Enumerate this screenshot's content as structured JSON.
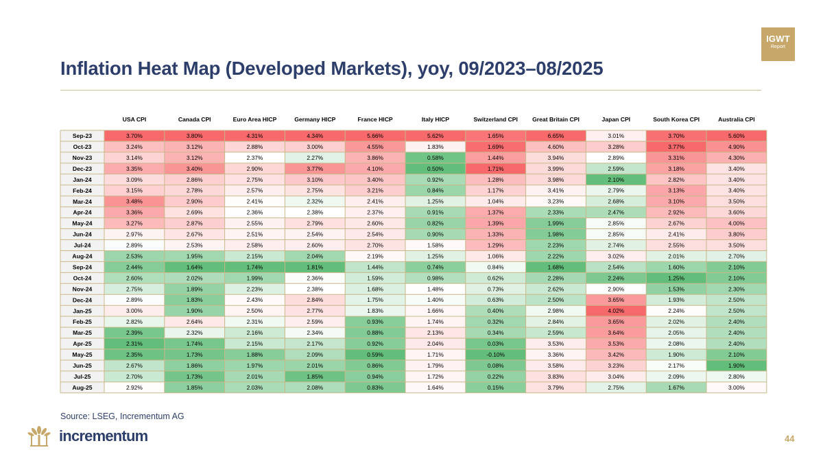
{
  "badge": {
    "line1": "IGWT",
    "line2": "Report"
  },
  "title": "Inflation Heat Map (Developed Markets), yoy, 09/2023–08/2025",
  "source": "Source: LSEG, Incrementum AG",
  "brand": "incrementum",
  "page_number": "44",
  "chart_data": {
    "type": "heatmap",
    "title": "Inflation Heat Map (Developed Markets), yoy, 09/2023–08/2025",
    "columns": [
      "USA CPI",
      "Canada CPI",
      "Euro Area HICP",
      "Germany HICP",
      "France HICP",
      "Italy HICP",
      "Switzerland CPI",
      "Great Britain CPI",
      "Japan CPI",
      "South Korea CPI",
      "Australia CPI"
    ],
    "rows": [
      "Sep-23",
      "Oct-23",
      "Nov-23",
      "Dec-23",
      "Jan-24",
      "Feb-24",
      "Mar-24",
      "Apr-24",
      "May-24",
      "Jun-24",
      "Jul-24",
      "Aug-24",
      "Sep-24",
      "Oct-24",
      "Nov-24",
      "Dec-24",
      "Jan-25",
      "Feb-25",
      "Mar-25",
      "Apr-25",
      "May-25",
      "Jun-25",
      "Jul-25",
      "Aug-25"
    ],
    "values": [
      [
        "3.70%",
        "3.80%",
        "4.31%",
        "4.34%",
        "5.66%",
        "5.62%",
        "1.65%",
        "6.65%",
        "3.01%",
        "3.70%",
        "5.60%"
      ],
      [
        "3.24%",
        "3.12%",
        "2.88%",
        "3.00%",
        "4.55%",
        "1.83%",
        "1.69%",
        "4.60%",
        "3.28%",
        "3.77%",
        "4.90%"
      ],
      [
        "3.14%",
        "3.12%",
        "2.37%",
        "2.27%",
        "3.86%",
        "0.58%",
        "1.44%",
        "3.94%",
        "2.89%",
        "3.31%",
        "4.30%"
      ],
      [
        "3.35%",
        "3.40%",
        "2.90%",
        "3.77%",
        "4.10%",
        "0.50%",
        "1.71%",
        "3.99%",
        "2.59%",
        "3.18%",
        "3.40%"
      ],
      [
        "3.09%",
        "2.86%",
        "2.75%",
        "3.10%",
        "3.40%",
        "0.92%",
        "1.28%",
        "3.98%",
        "2.10%",
        "2.82%",
        "3.40%"
      ],
      [
        "3.15%",
        "2.78%",
        "2.57%",
        "2.75%",
        "3.21%",
        "0.84%",
        "1.17%",
        "3.41%",
        "2.79%",
        "3.13%",
        "3.40%"
      ],
      [
        "3.48%",
        "2.90%",
        "2.41%",
        "2.32%",
        "2.41%",
        "1.25%",
        "1.04%",
        "3.23%",
        "2.68%",
        "3.10%",
        "3.50%"
      ],
      [
        "3.36%",
        "2.69%",
        "2.36%",
        "2.38%",
        "2.37%",
        "0.91%",
        "1.37%",
        "2.33%",
        "2.47%",
        "2.92%",
        "3.60%"
      ],
      [
        "3.27%",
        "2.87%",
        "2.55%",
        "2.79%",
        "2.60%",
        "0.82%",
        "1.39%",
        "1.99%",
        "2.85%",
        "2.67%",
        "4.00%"
      ],
      [
        "2.97%",
        "2.67%",
        "2.51%",
        "2.54%",
        "2.54%",
        "0.90%",
        "1.33%",
        "1.98%",
        "2.85%",
        "2.41%",
        "3.80%"
      ],
      [
        "2.89%",
        "2.53%",
        "2.58%",
        "2.60%",
        "2.70%",
        "1.58%",
        "1.29%",
        "2.23%",
        "2.74%",
        "2.55%",
        "3.50%"
      ],
      [
        "2.53%",
        "1.95%",
        "2.15%",
        "2.04%",
        "2.19%",
        "1.25%",
        "1.06%",
        "2.22%",
        "3.02%",
        "2.01%",
        "2.70%"
      ],
      [
        "2.44%",
        "1.64%",
        "1.74%",
        "1.81%",
        "1.44%",
        "0.74%",
        "0.84%",
        "1.68%",
        "2.54%",
        "1.60%",
        "2.10%"
      ],
      [
        "2.60%",
        "2.02%",
        "1.99%",
        "2.36%",
        "1.59%",
        "0.98%",
        "0.62%",
        "2.28%",
        "2.24%",
        "1.25%",
        "2.10%"
      ],
      [
        "2.75%",
        "1.89%",
        "2.23%",
        "2.38%",
        "1.68%",
        "1.48%",
        "0.73%",
        "2.62%",
        "2.90%",
        "1.53%",
        "2.30%"
      ],
      [
        "2.89%",
        "1.83%",
        "2.43%",
        "2.84%",
        "1.75%",
        "1.40%",
        "0.63%",
        "2.50%",
        "3.65%",
        "1.93%",
        "2.50%"
      ],
      [
        "3.00%",
        "1.90%",
        "2.50%",
        "2.77%",
        "1.83%",
        "1.66%",
        "0.40%",
        "2.98%",
        "4.02%",
        "2.24%",
        "2.50%"
      ],
      [
        "2.82%",
        "2.64%",
        "2.31%",
        "2.59%",
        "0.93%",
        "1.74%",
        "0.32%",
        "2.84%",
        "3.65%",
        "2.02%",
        "2.40%"
      ],
      [
        "2.39%",
        "2.32%",
        "2.16%",
        "2.34%",
        "0.88%",
        "2.13%",
        "0.34%",
        "2.59%",
        "3.64%",
        "2.05%",
        "2.40%"
      ],
      [
        "2.31%",
        "1.74%",
        "2.15%",
        "2.17%",
        "0.92%",
        "2.04%",
        "0.03%",
        "3.53%",
        "3.53%",
        "2.08%",
        "2.40%"
      ],
      [
        "2.35%",
        "1.73%",
        "1.88%",
        "2.09%",
        "0.59%",
        "1.71%",
        "-0.10%",
        "3.36%",
        "3.42%",
        "1.90%",
        "2.10%"
      ],
      [
        "2.67%",
        "1.86%",
        "1.97%",
        "2.01%",
        "0.86%",
        "1.79%",
        "0.08%",
        "3.58%",
        "3.23%",
        "2.17%",
        "1.90%"
      ],
      [
        "2.70%",
        "1.73%",
        "2.01%",
        "1.85%",
        "0.94%",
        "1.72%",
        "0.22%",
        "3.83%",
        "3.04%",
        "2.09%",
        "2.80%"
      ],
      [
        "2.92%",
        "1.85%",
        "2.03%",
        "2.08%",
        "0.83%",
        "1.64%",
        "0.15%",
        "3.79%",
        "2.75%",
        "1.67%",
        "3.00%"
      ]
    ],
    "colors": {
      "high": "#f8696b",
      "mid": "#ffffff",
      "low": "#63be7b",
      "row_label_bg": "#f2f2f2",
      "border": "#c8b88a"
    }
  }
}
